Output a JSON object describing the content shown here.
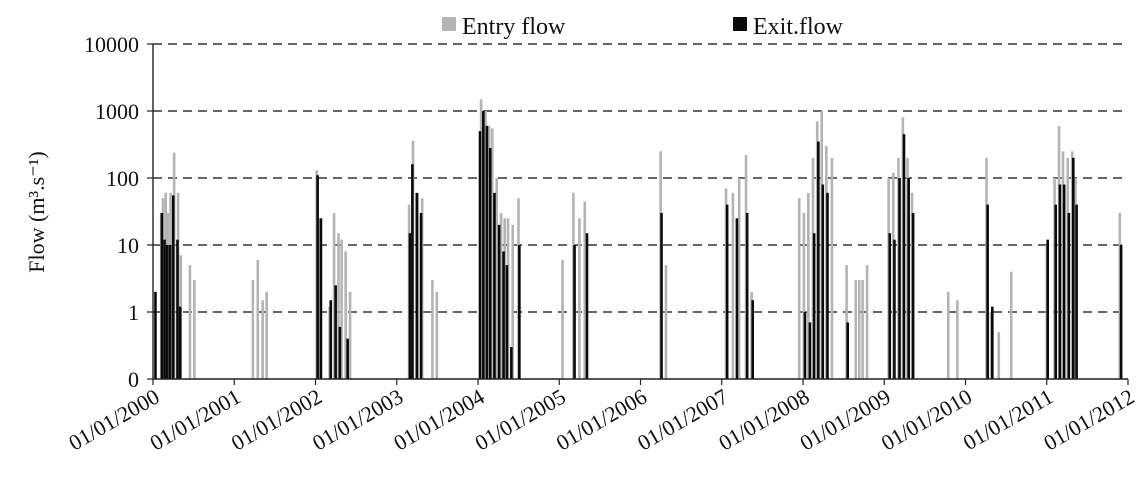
{
  "chart_data": {
    "type": "bar",
    "ylabel": "Flow (m³.s⁻¹)",
    "y_scale": "log",
    "yticks": [
      0,
      1,
      10,
      100,
      1000,
      10000
    ],
    "ytick_labels": [
      "0",
      "1",
      "10",
      "100",
      "1000",
      "10000"
    ],
    "x_range": [
      "01/01/2000",
      "01/01/2012"
    ],
    "xtick_labels": [
      "01/01/2000",
      "01/01/2001",
      "01/01/2002",
      "01/01/2003",
      "01/01/2004",
      "01/01/2005",
      "01/01/2006",
      "01/01/2007",
      "01/01/2008",
      "01/01/2009",
      "01/01/2010",
      "01/01/2011",
      "01/01/2012"
    ],
    "grid": true,
    "legend": {
      "placement": "top"
    },
    "series": [
      {
        "name": "Entry flow",
        "color": "#b4b4b4",
        "points": [
          [
            "2000-02-07",
            30
          ],
          [
            "2000-02-15",
            50
          ],
          [
            "2000-02-27",
            60
          ],
          [
            "2000-03-08",
            30
          ],
          [
            "2000-03-20",
            60
          ],
          [
            "2000-04-05",
            240
          ],
          [
            "2000-04-23",
            60
          ],
          [
            "2000-05-05",
            7
          ],
          [
            "2000-06-15",
            5
          ],
          [
            "2000-07-05",
            3
          ],
          [
            "2001-03-25",
            3
          ],
          [
            "2001-04-16",
            6
          ],
          [
            "2001-05-08",
            1.5
          ],
          [
            "2001-05-26",
            2
          ],
          [
            "2002-01-06",
            130
          ],
          [
            "2002-01-20",
            25
          ],
          [
            "2002-03-05",
            1.2
          ],
          [
            "2002-03-25",
            30
          ],
          [
            "2002-04-14",
            15
          ],
          [
            "2002-04-28",
            12
          ],
          [
            "2002-05-16",
            8
          ],
          [
            "2002-06-05",
            2
          ],
          [
            "2003-02-25",
            40
          ],
          [
            "2003-03-15",
            360
          ],
          [
            "2003-04-05",
            60
          ],
          [
            "2003-04-25",
            50
          ],
          [
            "2003-06-10",
            3
          ],
          [
            "2003-06-30",
            2
          ],
          [
            "2004-01-15",
            1500
          ],
          [
            "2004-02-04",
            1000
          ],
          [
            "2004-02-20",
            600
          ],
          [
            "2004-03-05",
            550
          ],
          [
            "2004-03-25",
            100
          ],
          [
            "2004-04-14",
            30
          ],
          [
            "2004-04-30",
            25
          ],
          [
            "2004-05-15",
            25
          ],
          [
            "2004-06-05",
            20
          ],
          [
            "2004-07-01",
            50
          ],
          [
            "2005-01-15",
            6
          ],
          [
            "2005-03-05",
            60
          ],
          [
            "2005-04-01",
            25
          ],
          [
            "2005-04-25",
            45
          ],
          [
            "2006-04-01",
            250
          ],
          [
            "2006-04-25",
            5
          ],
          [
            "2007-01-20",
            70
          ],
          [
            "2007-02-20",
            60
          ],
          [
            "2007-03-20",
            100
          ],
          [
            "2007-04-20",
            220
          ],
          [
            "2007-05-15",
            2
          ],
          [
            "2007-12-15",
            50
          ],
          [
            "2008-01-05",
            30
          ],
          [
            "2008-01-25",
            60
          ],
          [
            "2008-02-15",
            200
          ],
          [
            "2008-03-05",
            700
          ],
          [
            "2008-03-25",
            1000
          ],
          [
            "2008-04-15",
            300
          ],
          [
            "2008-05-10",
            200
          ],
          [
            "2008-07-15",
            5
          ],
          [
            "2008-08-25",
            3
          ],
          [
            "2008-09-10",
            3
          ],
          [
            "2008-09-25",
            3
          ],
          [
            "2008-10-15",
            5
          ],
          [
            "2009-01-20",
            100
          ],
          [
            "2009-02-10",
            120
          ],
          [
            "2009-03-05",
            200
          ],
          [
            "2009-03-25",
            800
          ],
          [
            "2009-04-15",
            200
          ],
          [
            "2009-05-05",
            60
          ],
          [
            "2009-10-15",
            2
          ],
          [
            "2009-11-25",
            1.5
          ],
          [
            "2010-04-05",
            200
          ],
          [
            "2010-04-25",
            1
          ],
          [
            "2010-05-30",
            0.5
          ],
          [
            "2010-07-25",
            4
          ],
          [
            "2011-01-01",
            10
          ],
          [
            "2011-02-05",
            100
          ],
          [
            "2011-02-25",
            600
          ],
          [
            "2011-03-15",
            250
          ],
          [
            "2011-04-05",
            200
          ],
          [
            "2011-04-25",
            250
          ],
          [
            "2011-05-10",
            100
          ],
          [
            "2011-11-25",
            30
          ]
        ]
      },
      {
        "name": "Exit.flow",
        "color": "#0a0a0a",
        "points": [
          [
            "2000-01-12",
            2
          ],
          [
            "2000-02-10",
            30
          ],
          [
            "2000-02-22",
            12
          ],
          [
            "2000-03-05",
            10
          ],
          [
            "2000-03-18",
            10
          ],
          [
            "2000-04-01",
            55
          ],
          [
            "2000-04-20",
            12
          ],
          [
            "2000-05-02",
            1.2
          ],
          [
            "2002-01-10",
            110
          ],
          [
            "2002-01-25",
            25
          ],
          [
            "2002-03-10",
            1.5
          ],
          [
            "2002-04-01",
            2.5
          ],
          [
            "2002-04-20",
            0.6
          ],
          [
            "2002-05-25",
            0.4
          ],
          [
            "2003-03-01",
            15
          ],
          [
            "2003-03-12",
            160
          ],
          [
            "2003-04-01",
            60
          ],
          [
            "2003-04-20",
            30
          ],
          [
            "2004-01-10",
            500
          ],
          [
            "2004-01-25",
            1000
          ],
          [
            "2004-02-10",
            600
          ],
          [
            "2004-02-25",
            280
          ],
          [
            "2004-03-15",
            60
          ],
          [
            "2004-04-05",
            20
          ],
          [
            "2004-04-25",
            8
          ],
          [
            "2004-05-10",
            5
          ],
          [
            "2004-05-30",
            0.3
          ],
          [
            "2004-07-05",
            10
          ],
          [
            "2005-03-10",
            10
          ],
          [
            "2005-05-05",
            15
          ],
          [
            "2006-04-05",
            30
          ],
          [
            "2007-01-25",
            40
          ],
          [
            "2007-03-10",
            25
          ],
          [
            "2007-04-25",
            30
          ],
          [
            "2007-05-20",
            1.5
          ],
          [
            "2008-01-10",
            1
          ],
          [
            "2008-02-01",
            0.7
          ],
          [
            "2008-02-20",
            15
          ],
          [
            "2008-03-10",
            350
          ],
          [
            "2008-03-30",
            80
          ],
          [
            "2008-04-20",
            60
          ],
          [
            "2008-07-20",
            0.7
          ],
          [
            "2009-01-25",
            15
          ],
          [
            "2009-02-15",
            12
          ],
          [
            "2009-03-10",
            100
          ],
          [
            "2009-03-30",
            450
          ],
          [
            "2009-04-20",
            100
          ],
          [
            "2009-05-10",
            30
          ],
          [
            "2010-04-10",
            40
          ],
          [
            "2010-05-01",
            1.2
          ],
          [
            "2011-01-05",
            12
          ],
          [
            "2011-02-10",
            40
          ],
          [
            "2011-03-01",
            80
          ],
          [
            "2011-03-20",
            80
          ],
          [
            "2011-04-10",
            30
          ],
          [
            "2011-04-30",
            200
          ],
          [
            "2011-05-15",
            40
          ],
          [
            "2011-12-01",
            10
          ]
        ]
      }
    ]
  }
}
